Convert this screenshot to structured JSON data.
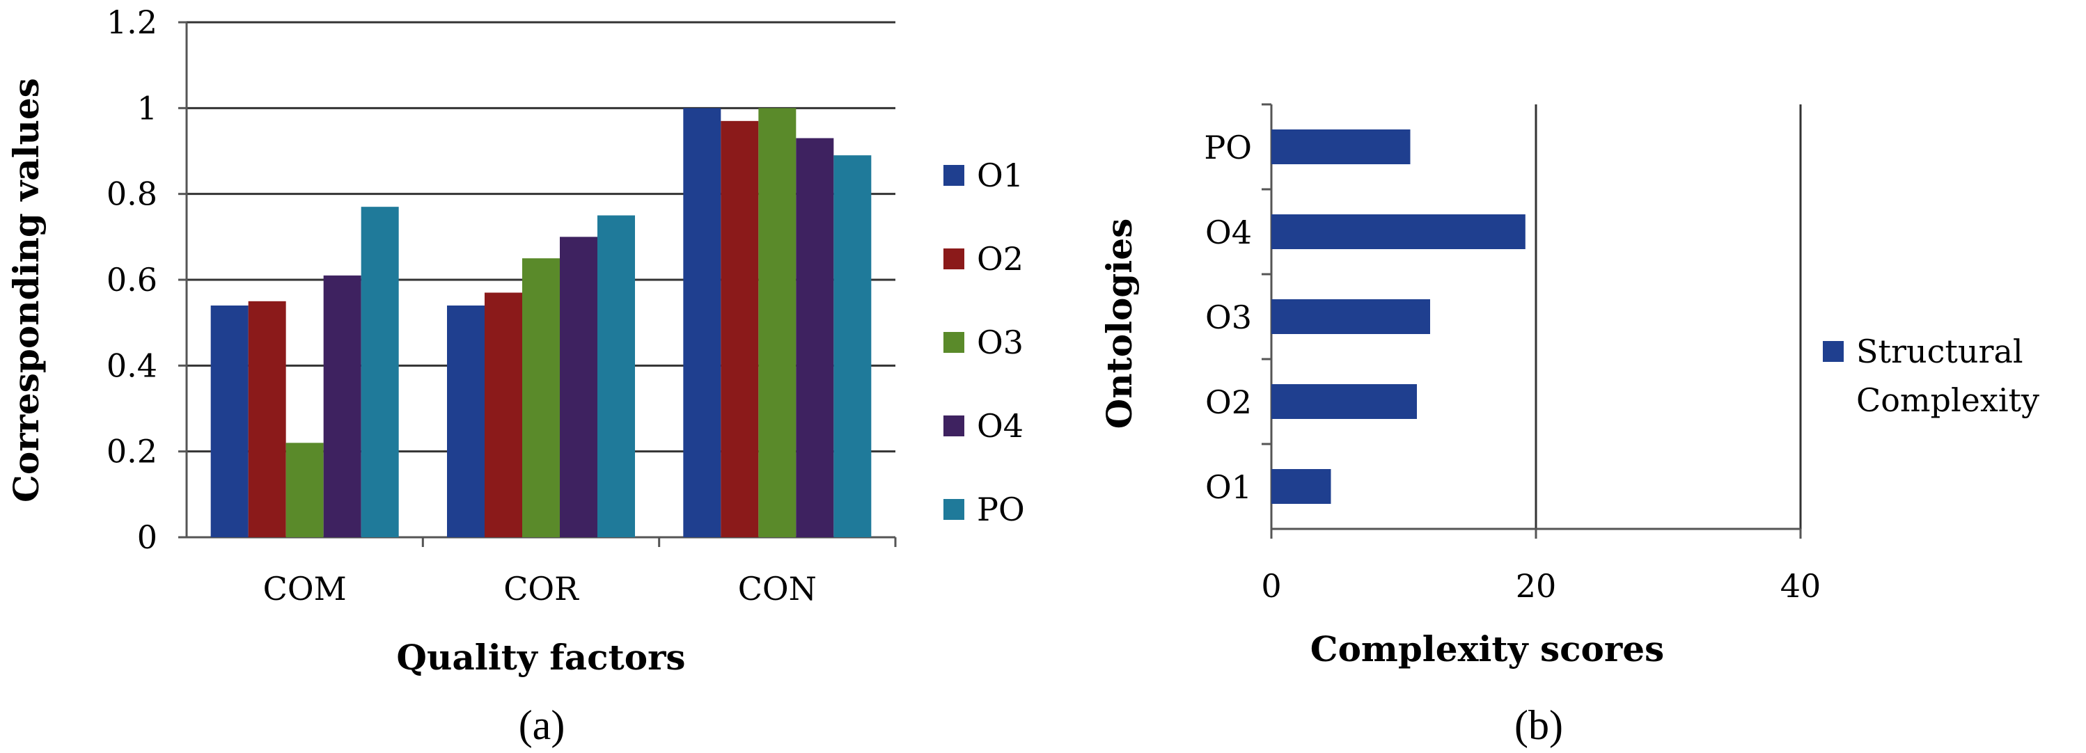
{
  "chart_data": [
    {
      "type": "bar",
      "title": "",
      "xlabel": "Quality factors",
      "ylabel": "Corresponding values",
      "caption": "(a)",
      "categories": [
        "COM",
        "COR",
        "CON"
      ],
      "ylim": [
        0,
        1.2
      ],
      "yticks": [
        "0",
        "0.2",
        "0.4",
        "0.6",
        "0.8",
        "1",
        "1.2"
      ],
      "grid": true,
      "legend_position": "right",
      "series": [
        {
          "name": "O1",
          "color": "#1f3f8f",
          "values": [
            0.54,
            0.54,
            1.0
          ]
        },
        {
          "name": "O2",
          "color": "#8b1a1a",
          "values": [
            0.55,
            0.57,
            0.97
          ]
        },
        {
          "name": "O3",
          "color": "#5a8a2a",
          "values": [
            0.22,
            0.65,
            1.0
          ]
        },
        {
          "name": "O4",
          "color": "#3e2260",
          "values": [
            0.61,
            0.7,
            0.93
          ]
        },
        {
          "name": "PO",
          "color": "#1f7a9a",
          "values": [
            0.77,
            0.75,
            0.89
          ]
        }
      ]
    },
    {
      "type": "bar",
      "orientation": "horizontal",
      "title": "",
      "xlabel": "Complexity scores",
      "ylabel": "Ontologies",
      "caption": "(b)",
      "categories": [
        "O1",
        "O2",
        "O3",
        "O4",
        "PO"
      ],
      "xlim": [
        0,
        40
      ],
      "xticks": [
        "0",
        "20",
        "40"
      ],
      "grid": true,
      "legend_position": "right",
      "series": [
        {
          "name": "Structural Complexity",
          "name_lines": [
            "Structural",
            "Complexity"
          ],
          "color": "#1f3f8f",
          "values": [
            4.5,
            11,
            12,
            19.2,
            10.5
          ]
        }
      ]
    }
  ]
}
